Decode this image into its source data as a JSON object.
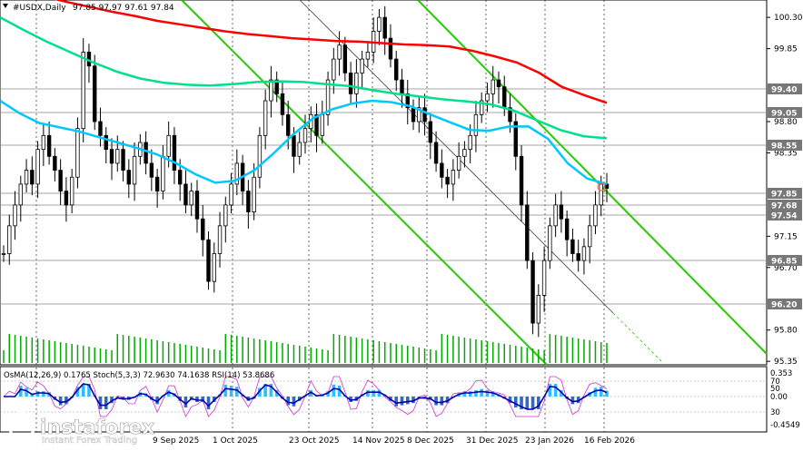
{
  "header": {
    "symbol": "#USDX,Daily",
    "ohlc": "97.85 97.97 97.61 97.84"
  },
  "indicator_header": "OsMA(12,26,9) 0.1765  Stoch(5,3,3) 72.9630 74.1638  RSI(14) 53.8686",
  "logo": {
    "name": "instaforex",
    "tagline": "Instant Forex Trading"
  },
  "price_labels": [
    {
      "text": "99.40",
      "color": "#777777"
    },
    {
      "text": "99.05",
      "color": "#777777"
    },
    {
      "text": "98.55",
      "color": "#777777"
    },
    {
      "text": "97.85",
      "color": "#777777"
    },
    {
      "text": "97.68",
      "color": "#777777"
    },
    {
      "text": "97.54",
      "color": "#777777"
    },
    {
      "text": "96.85",
      "color": "#777777"
    },
    {
      "text": "96.20",
      "color": "#777777"
    }
  ],
  "indicator_labels": [
    "0.353",
    "70",
    "50",
    "0.00",
    "30",
    "-0.4549"
  ],
  "chart_data": {
    "type": "line",
    "title": "#USDX,Daily",
    "ylim": [
      95.3,
      100.55
    ],
    "y_ticks": [
      100.3,
      99.85,
      98.8,
      98.35,
      97.15,
      96.7,
      95.8,
      95.35
    ],
    "x_labels": [
      "9 Sep 2025",
      "1 Oct 2025",
      "23 Oct 2025",
      "14 Nov 2025",
      "8 Dec 2025",
      "31 Dec 2025",
      "23 Jan 2026",
      "16 Feb 2026"
    ],
    "last_close": 97.84,
    "series": [
      {
        "name": "price",
        "color": "#000000",
        "values": [
          96.9,
          97.3,
          97.6,
          97.9,
          98.1,
          97.9,
          98.4,
          98.6,
          98.3,
          98.1,
          97.8,
          97.6,
          98.0,
          98.7,
          99.8,
          99.6,
          98.8,
          98.6,
          98.4,
          98.2,
          98.4,
          98.1,
          97.9,
          98.3,
          98.5,
          98.2,
          98.0,
          97.8,
          98.3,
          98.6,
          98.1,
          97.9,
          97.6,
          97.8,
          97.4,
          97.1,
          96.5,
          96.9,
          97.3,
          97.6,
          97.9,
          98.2,
          97.8,
          97.5,
          98.0,
          98.6,
          99.1,
          99.4,
          99.2,
          98.9,
          98.6,
          98.3,
          98.5,
          98.7,
          98.9,
          98.6,
          98.9,
          99.4,
          99.7,
          99.9,
          99.5,
          99.2,
          99.5,
          99.7,
          99.8,
          100.1,
          100.3,
          100.0,
          99.7,
          99.4,
          99.2,
          99.0,
          98.8,
          99.0,
          98.8,
          98.5,
          98.2,
          98.0,
          97.9,
          98.1,
          98.3,
          98.4,
          98.6,
          98.9,
          99.1,
          99.2,
          99.4,
          99.3,
          99.0,
          98.8,
          98.3,
          97.6,
          96.8,
          95.9,
          96.3,
          96.8,
          97.3,
          97.6,
          97.4,
          97.1,
          96.9,
          96.8,
          97.0,
          97.3,
          97.6,
          97.9,
          97.84
        ]
      },
      {
        "name": "ma_red",
        "color": "#ff0000",
        "values": [
          100.75,
          100.7,
          100.6,
          100.52,
          100.45,
          100.38,
          100.32,
          100.25,
          100.2,
          100.15,
          100.1,
          100.06,
          100.03,
          100.0,
          99.98,
          99.96,
          99.95,
          99.93,
          99.91,
          99.9,
          99.88,
          99.82,
          99.74,
          99.65,
          99.5,
          99.3,
          99.18,
          99.07
        ]
      },
      {
        "name": "ma_green",
        "color": "#00e08a",
        "values": [
          100.3,
          100.12,
          99.95,
          99.8,
          99.65,
          99.52,
          99.42,
          99.36,
          99.33,
          99.32,
          99.34,
          99.37,
          99.38,
          99.37,
          99.34,
          99.31,
          99.25,
          99.2,
          99.16,
          99.12,
          99.09,
          99.05,
          98.96,
          98.82,
          98.68,
          98.59,
          98.56
        ]
      },
      {
        "name": "ma_cyan",
        "color": "#00c8ff",
        "values": [
          99.1,
          98.92,
          98.78,
          98.72,
          98.66,
          98.58,
          98.5,
          98.42,
          98.33,
          98.2,
          98.04,
          97.92,
          97.95,
          98.1,
          98.35,
          98.62,
          98.85,
          98.98,
          99.06,
          99.1,
          99.08,
          99.02,
          98.9,
          98.79,
          98.68,
          98.67,
          98.73,
          98.73,
          98.55,
          98.2,
          97.98,
          97.9
        ]
      }
    ]
  }
}
